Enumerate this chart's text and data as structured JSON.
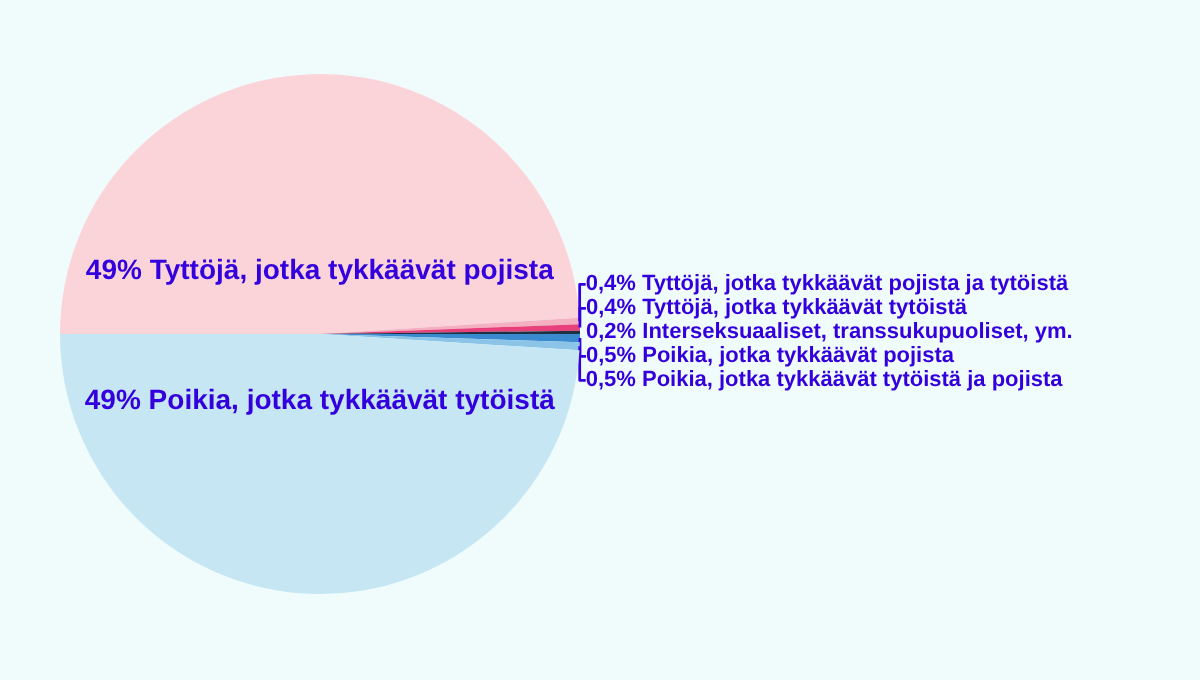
{
  "chart_data": {
    "type": "pie",
    "categories": [
      "Tyttöjä, jotka tykkäävät pojista",
      "Tyttöjä, jotka tykkäävät pojista ja tytöistä",
      "Tyttöjä, jotka tykkäävät tytöistä",
      "Interseksuaaliset, transsukupuoliset, ym.",
      "Poikia, jotka tykkäävät pojista",
      "Poikia, jotka tykkäävät tytöistä ja pojista",
      "Poikia, jotka tykkäävät tytöistä"
    ],
    "values": [
      49,
      0.4,
      0.4,
      0.2,
      0.5,
      0.5,
      49
    ],
    "colors": [
      "#fad4d8",
      "#f4b0c0",
      "#e8407a",
      "#203040",
      "#3a8ad0",
      "#8cc4e8",
      "#c5e6f2"
    ],
    "value_labels": [
      "49%",
      "0,4%",
      "0,4%",
      "0,2%",
      "0,5%",
      "0,5%",
      "49%"
    ]
  }
}
